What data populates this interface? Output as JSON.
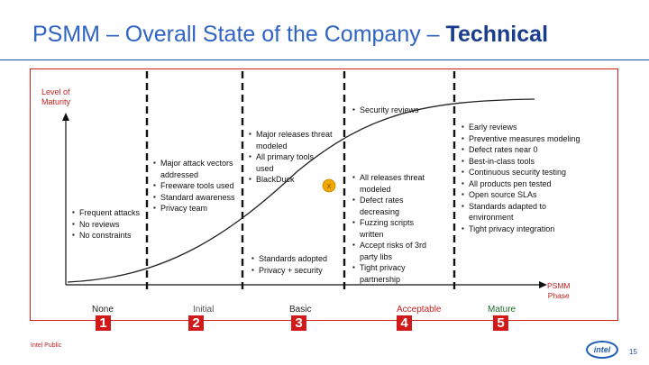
{
  "title": {
    "prefix": "PSMM – Overall State of the Company – ",
    "emphasis": "Technical"
  },
  "axis": {
    "y_label_line1": "Level of",
    "y_label_line2": "Maturity",
    "x_label_line1": "PSMM",
    "x_label_line2": "Phase"
  },
  "current_marker": "X",
  "columns": [
    {
      "stage": "None",
      "number": "1",
      "bullets": [
        "Frequent attacks",
        "No reviews",
        "No constraints"
      ]
    },
    {
      "stage": "Initial",
      "number": "2",
      "bullets": [
        "Major attack vectors addressed",
        "Freeware tools used",
        "Standard awareness",
        "Privacy team"
      ]
    },
    {
      "stage": "Basic",
      "number": "3",
      "bullets_top": [
        "Major releases threat modeled",
        "All primary tools used",
        "BlackDuck"
      ],
      "bullets_bottom": [
        "Standards adopted",
        "Privacy + security"
      ]
    },
    {
      "stage": "Acceptable",
      "number": "4",
      "bullets_top": [
        "Security reviews"
      ],
      "bullets_bottom": [
        "All releases threat modeled",
        "Defect rates decreasing",
        "Fuzzing scripts written",
        "Accept risks of 3rd party libs",
        "Tight privacy partnership"
      ]
    },
    {
      "stage": "Mature",
      "number": "5",
      "bullets": [
        "Early reviews",
        "Preventive measures modeling",
        "Defect rates near 0",
        "Best-in-class tools",
        "Continuous security testing",
        "All products pen tested",
        "Open source SLAs",
        "Standards adapted to environment",
        "Tight privacy integration"
      ]
    }
  ],
  "footer": {
    "classification": "Intel Public",
    "logo_text": "intel",
    "page": "15"
  },
  "colors": {
    "title": "#2f63c4",
    "accent_red": "#d21919",
    "divider": "#111111",
    "curve": "#222222",
    "marker": "#f0a800"
  }
}
